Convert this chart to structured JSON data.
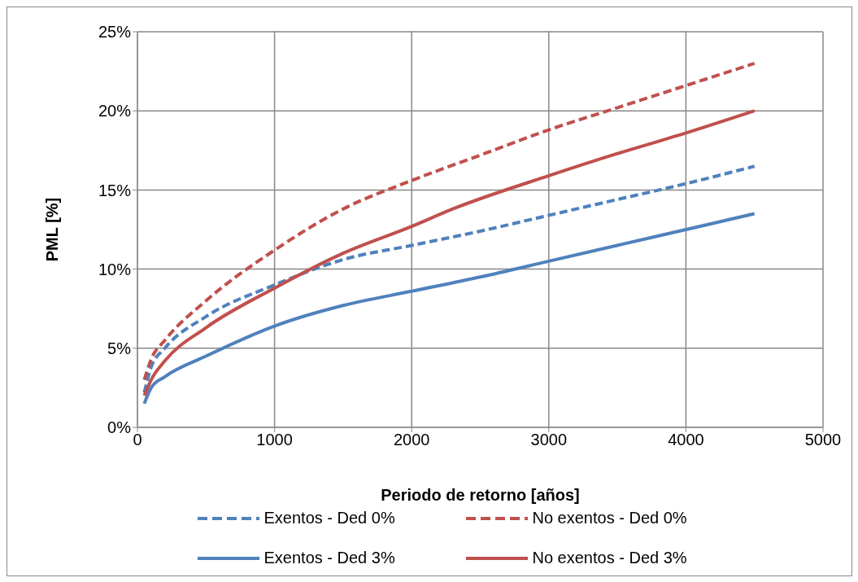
{
  "chart_data": {
    "type": "line",
    "xlabel": "Periodo de retorno [años]",
    "ylabel": "PML [%]",
    "xlim": [
      0,
      5000
    ],
    "xticks": [
      0,
      1000,
      2000,
      3000,
      4000,
      5000
    ],
    "ylim": [
      0,
      25
    ],
    "yticks": [
      {
        "value": 0,
        "label": "0%"
      },
      {
        "value": 5,
        "label": "5%"
      },
      {
        "value": 10,
        "label": "10%"
      },
      {
        "value": 15,
        "label": "15%"
      },
      {
        "value": 20,
        "label": "20%"
      },
      {
        "value": 25,
        "label": "25%"
      }
    ],
    "grid": true,
    "legend": "bottom",
    "marker": "none",
    "series": [
      {
        "name": "Exentos - Ded 0%",
        "color": "#4f81bd",
        "line_style": "dashed",
        "x": [
          50,
          100,
          200,
          500,
          1000,
          1500,
          2000,
          2500,
          3000,
          3500,
          4000,
          4500
        ],
        "values": [
          2.2,
          3.8,
          5,
          7,
          9,
          10.6,
          11.5,
          12.4,
          13.4,
          14.4,
          15.4,
          16.5
        ]
      },
      {
        "name": "No exentos - Ded 0%",
        "color": "#c0504d",
        "line_style": "dashed",
        "x": [
          50,
          100,
          200,
          500,
          1000,
          1500,
          2000,
          2500,
          3000,
          3500,
          4000,
          4500
        ],
        "values": [
          3,
          4.3,
          5.5,
          8,
          11.2,
          13.8,
          15.6,
          17.2,
          18.8,
          20.2,
          21.6,
          23
        ]
      },
      {
        "name": "Exentos - Ded 3%",
        "color": "#4f81bd",
        "line_style": "solid",
        "x": [
          50,
          100,
          200,
          500,
          1000,
          1500,
          2000,
          2500,
          3000,
          3500,
          4000,
          4500
        ],
        "values": [
          1.5,
          2.5,
          3.2,
          4.5,
          6.4,
          7.7,
          8.6,
          9.5,
          10.5,
          11.5,
          12.5,
          13.5
        ]
      },
      {
        "name": "No exentos - Ded 3%",
        "color": "#c0504d",
        "line_style": "solid",
        "x": [
          50,
          100,
          200,
          500,
          1000,
          1500,
          2000,
          2300,
          3000,
          3500,
          4000,
          4500
        ],
        "values": [
          2,
          3,
          4.2,
          6.3,
          8.8,
          11,
          12.7,
          13.8,
          15.9,
          17.3,
          18.6,
          20
        ]
      }
    ]
  }
}
